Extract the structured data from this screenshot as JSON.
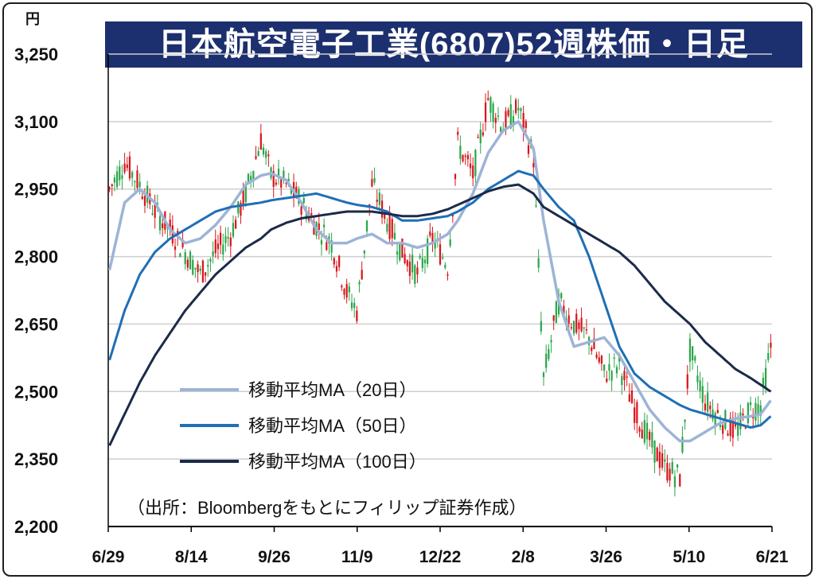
{
  "title": "日本航空電子工業(6807)52週株価・日足",
  "y_unit": "円",
  "source_note": "（出所：Bloombergをもとにフィリップ証券作成）",
  "colors": {
    "title_bg": "#1c2f6e",
    "up": "#d9151b",
    "down": "#2aa64a",
    "ma20": "#9db4d6",
    "ma50": "#1f6fb5",
    "ma100": "#1c2a4a",
    "grid": "#cfcfcf"
  },
  "chart_data": {
    "type": "line",
    "chart_kind": "candlestick with moving averages",
    "title": "日本航空電子工業(6807)52週株価・日足",
    "ylabel": "円",
    "ylim": [
      2200,
      3250
    ],
    "y_ticks": [
      "2,200",
      "2,350",
      "2,500",
      "2,650",
      "2,800",
      "2,950",
      "3,100",
      "3,250"
    ],
    "x_tick_labels": [
      "6/29",
      "8/14",
      "9/26",
      "11/9",
      "12/22",
      "2/8",
      "3/26",
      "5/10",
      "6/21"
    ],
    "grid": true,
    "legend_position": "bottom-left",
    "price_path": {
      "description": "approximate daily close path (index = trading day)",
      "points": [
        [
          0,
          2950
        ],
        [
          6,
          3010
        ],
        [
          12,
          2960
        ],
        [
          18,
          2900
        ],
        [
          24,
          2860
        ],
        [
          30,
          2810
        ],
        [
          36,
          2760
        ],
        [
          42,
          2810
        ],
        [
          48,
          2850
        ],
        [
          54,
          2940
        ],
        [
          60,
          3060
        ],
        [
          64,
          2980
        ],
        [
          70,
          2960
        ],
        [
          76,
          2920
        ],
        [
          82,
          2870
        ],
        [
          88,
          2830
        ],
        [
          94,
          2720
        ],
        [
          98,
          2680
        ],
        [
          104,
          2960
        ],
        [
          110,
          2880
        ],
        [
          116,
          2810
        ],
        [
          122,
          2760
        ],
        [
          128,
          2840
        ],
        [
          134,
          2780
        ],
        [
          138,
          3050
        ],
        [
          144,
          2980
        ],
        [
          150,
          3150
        ],
        [
          156,
          3090
        ],
        [
          162,
          3130
        ],
        [
          168,
          3020
        ],
        [
          172,
          2530
        ],
        [
          178,
          2700
        ],
        [
          184,
          2650
        ],
        [
          190,
          2620
        ],
        [
          196,
          2540
        ],
        [
          202,
          2560
        ],
        [
          208,
          2460
        ],
        [
          214,
          2390
        ],
        [
          220,
          2330
        ],
        [
          226,
          2310
        ],
        [
          230,
          2590
        ],
        [
          236,
          2480
        ],
        [
          242,
          2440
        ],
        [
          248,
          2410
        ],
        [
          254,
          2460
        ],
        [
          258,
          2470
        ],
        [
          262,
          2600
        ]
      ]
    },
    "series": [
      {
        "name": "移動平均MA（20日）",
        "values": [
          [
            0,
            2770
          ],
          [
            6,
            2920
          ],
          [
            12,
            2950
          ],
          [
            18,
            2920
          ],
          [
            24,
            2860
          ],
          [
            30,
            2830
          ],
          [
            36,
            2840
          ],
          [
            42,
            2870
          ],
          [
            48,
            2910
          ],
          [
            54,
            2960
          ],
          [
            60,
            2980
          ],
          [
            64,
            2985
          ],
          [
            70,
            2970
          ],
          [
            76,
            2920
          ],
          [
            82,
            2860
          ],
          [
            88,
            2830
          ],
          [
            94,
            2830
          ],
          [
            98,
            2840
          ],
          [
            104,
            2850
          ],
          [
            110,
            2830
          ],
          [
            116,
            2830
          ],
          [
            122,
            2820
          ],
          [
            128,
            2830
          ],
          [
            134,
            2850
          ],
          [
            138,
            2880
          ],
          [
            144,
            2940
          ],
          [
            150,
            3030
          ],
          [
            156,
            3080
          ],
          [
            162,
            3100
          ],
          [
            168,
            3040
          ],
          [
            172,
            2880
          ],
          [
            178,
            2700
          ],
          [
            184,
            2600
          ],
          [
            190,
            2610
          ],
          [
            196,
            2620
          ],
          [
            202,
            2580
          ],
          [
            208,
            2520
          ],
          [
            214,
            2460
          ],
          [
            220,
            2420
          ],
          [
            226,
            2390
          ],
          [
            230,
            2390
          ],
          [
            236,
            2410
          ],
          [
            242,
            2430
          ],
          [
            248,
            2440
          ],
          [
            254,
            2445
          ],
          [
            258,
            2450
          ],
          [
            262,
            2480
          ]
        ]
      },
      {
        "name": "移動平均MA（50日）",
        "values": [
          [
            0,
            2570
          ],
          [
            6,
            2680
          ],
          [
            12,
            2760
          ],
          [
            18,
            2810
          ],
          [
            24,
            2840
          ],
          [
            30,
            2860
          ],
          [
            36,
            2880
          ],
          [
            42,
            2900
          ],
          [
            48,
            2910
          ],
          [
            54,
            2915
          ],
          [
            60,
            2920
          ],
          [
            64,
            2925
          ],
          [
            70,
            2930
          ],
          [
            76,
            2935
          ],
          [
            82,
            2940
          ],
          [
            88,
            2930
          ],
          [
            94,
            2920
          ],
          [
            98,
            2915
          ],
          [
            104,
            2910
          ],
          [
            110,
            2900
          ],
          [
            116,
            2880
          ],
          [
            122,
            2880
          ],
          [
            128,
            2885
          ],
          [
            134,
            2890
          ],
          [
            138,
            2900
          ],
          [
            144,
            2920
          ],
          [
            150,
            2950
          ],
          [
            156,
            2970
          ],
          [
            162,
            2990
          ],
          [
            168,
            2980
          ],
          [
            172,
            2950
          ],
          [
            178,
            2910
          ],
          [
            184,
            2880
          ],
          [
            190,
            2800
          ],
          [
            196,
            2700
          ],
          [
            202,
            2600
          ],
          [
            208,
            2540
          ],
          [
            214,
            2510
          ],
          [
            220,
            2490
          ],
          [
            226,
            2470
          ],
          [
            230,
            2460
          ],
          [
            236,
            2450
          ],
          [
            242,
            2440
          ],
          [
            248,
            2430
          ],
          [
            254,
            2420
          ],
          [
            258,
            2425
          ],
          [
            262,
            2445
          ]
        ]
      },
      {
        "name": "移動平均MA（100日）",
        "values": [
          [
            0,
            2380
          ],
          [
            6,
            2450
          ],
          [
            12,
            2520
          ],
          [
            18,
            2580
          ],
          [
            24,
            2630
          ],
          [
            30,
            2680
          ],
          [
            36,
            2720
          ],
          [
            42,
            2760
          ],
          [
            48,
            2790
          ],
          [
            54,
            2820
          ],
          [
            60,
            2840
          ],
          [
            64,
            2860
          ],
          [
            70,
            2875
          ],
          [
            76,
            2885
          ],
          [
            82,
            2890
          ],
          [
            88,
            2895
          ],
          [
            94,
            2900
          ],
          [
            98,
            2900
          ],
          [
            104,
            2900
          ],
          [
            110,
            2895
          ],
          [
            116,
            2890
          ],
          [
            122,
            2890
          ],
          [
            128,
            2895
          ],
          [
            134,
            2905
          ],
          [
            138,
            2915
          ],
          [
            144,
            2930
          ],
          [
            150,
            2945
          ],
          [
            156,
            2955
          ],
          [
            162,
            2960
          ],
          [
            168,
            2940
          ],
          [
            172,
            2910
          ],
          [
            178,
            2890
          ],
          [
            184,
            2870
          ],
          [
            190,
            2850
          ],
          [
            196,
            2830
          ],
          [
            202,
            2810
          ],
          [
            208,
            2780
          ],
          [
            214,
            2740
          ],
          [
            220,
            2700
          ],
          [
            226,
            2670
          ],
          [
            230,
            2650
          ],
          [
            236,
            2610
          ],
          [
            242,
            2580
          ],
          [
            248,
            2550
          ],
          [
            254,
            2530
          ],
          [
            258,
            2515
          ],
          [
            262,
            2500
          ]
        ]
      }
    ]
  }
}
